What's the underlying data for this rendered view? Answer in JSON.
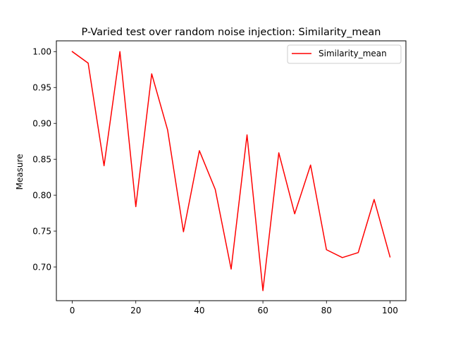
{
  "chart_data": {
    "type": "line",
    "title": "P-Varied test over random noise injection: Similarity_mean",
    "xlabel": "",
    "ylabel": "Measure",
    "xlim": [
      -5,
      105
    ],
    "ylim": [
      0.653,
      1.015
    ],
    "xticks": [
      0,
      20,
      40,
      60,
      80,
      100
    ],
    "xtick_labels": [
      "0",
      "20",
      "40",
      "60",
      "80",
      "100"
    ],
    "yticks": [
      0.7,
      0.75,
      0.8,
      0.85,
      0.9,
      0.95,
      1.0
    ],
    "ytick_labels": [
      "0.70",
      "0.75",
      "0.80",
      "0.85",
      "0.90",
      "0.95",
      "1.00"
    ],
    "grid": false,
    "legend_position": "top-right",
    "series": [
      {
        "name": "Similarity_mean",
        "color": "#ff0000",
        "x": [
          0,
          5,
          10,
          15,
          20,
          25,
          30,
          35,
          40,
          45,
          50,
          55,
          60,
          65,
          70,
          75,
          80,
          85,
          90,
          95,
          100
        ],
        "y": [
          1.0,
          0.984,
          0.841,
          1.0,
          0.784,
          0.969,
          0.891,
          0.749,
          0.862,
          0.808,
          0.697,
          0.884,
          0.667,
          0.859,
          0.774,
          0.842,
          0.724,
          0.713,
          0.72,
          0.794,
          0.714
        ]
      }
    ]
  }
}
